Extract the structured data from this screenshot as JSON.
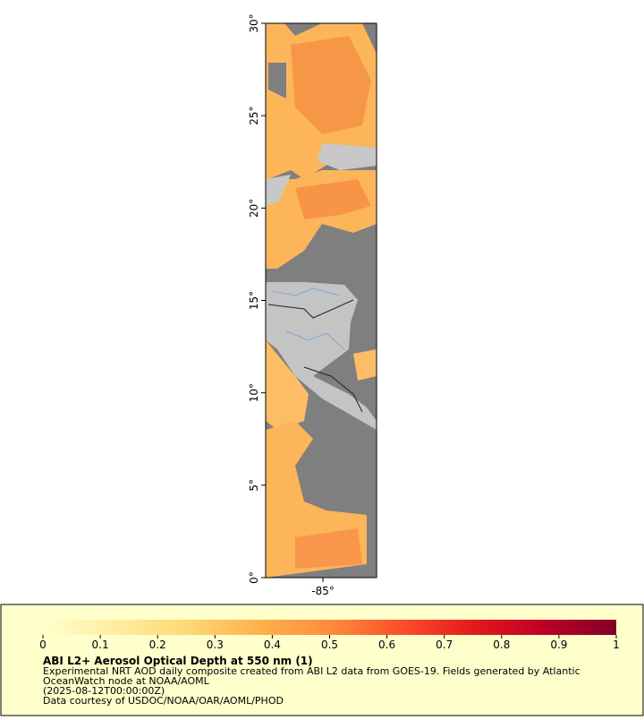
{
  "map": {
    "ylim": [
      0,
      30
    ],
    "yticks": [
      {
        "value": 0,
        "label": "0°"
      },
      {
        "value": 5,
        "label": "5°"
      },
      {
        "value": 10,
        "label": "10°"
      },
      {
        "value": 15,
        "label": "15°"
      },
      {
        "value": 20,
        "label": "20°"
      },
      {
        "value": 25,
        "label": "25°"
      },
      {
        "value": 30,
        "label": "30°"
      }
    ],
    "xlim": [
      -88.1,
      -82.1
    ],
    "xticks": [
      {
        "value": -85,
        "label": "-85°"
      }
    ]
  },
  "legend": {
    "title": "ABI L2+ Aerosol Optical Depth at 550 nm (1)",
    "colorbar": {
      "lim": [
        0,
        1
      ],
      "ticks": [
        0,
        0.1,
        0.2,
        0.3,
        0.4,
        0.5,
        0.6,
        0.7,
        0.8,
        0.9,
        1
      ],
      "colors": [
        "#ffffcc",
        "#ffeda0",
        "#fed976",
        "#feb24c",
        "#fd8d3c",
        "#fc4e2a",
        "#e31a1c",
        "#bd0026",
        "#800026"
      ]
    },
    "lines": [
      "Experimental NRT AOD daily composite created from ABI L2 data from GOES-19. Fields generated by Atlantic",
      "OceanWatch node at NOAA/AOML",
      "(2025-08-12T00:00:00Z)",
      "Data courtesy of USDOC/NOAA/OAR/AOML/PHOD"
    ]
  }
}
